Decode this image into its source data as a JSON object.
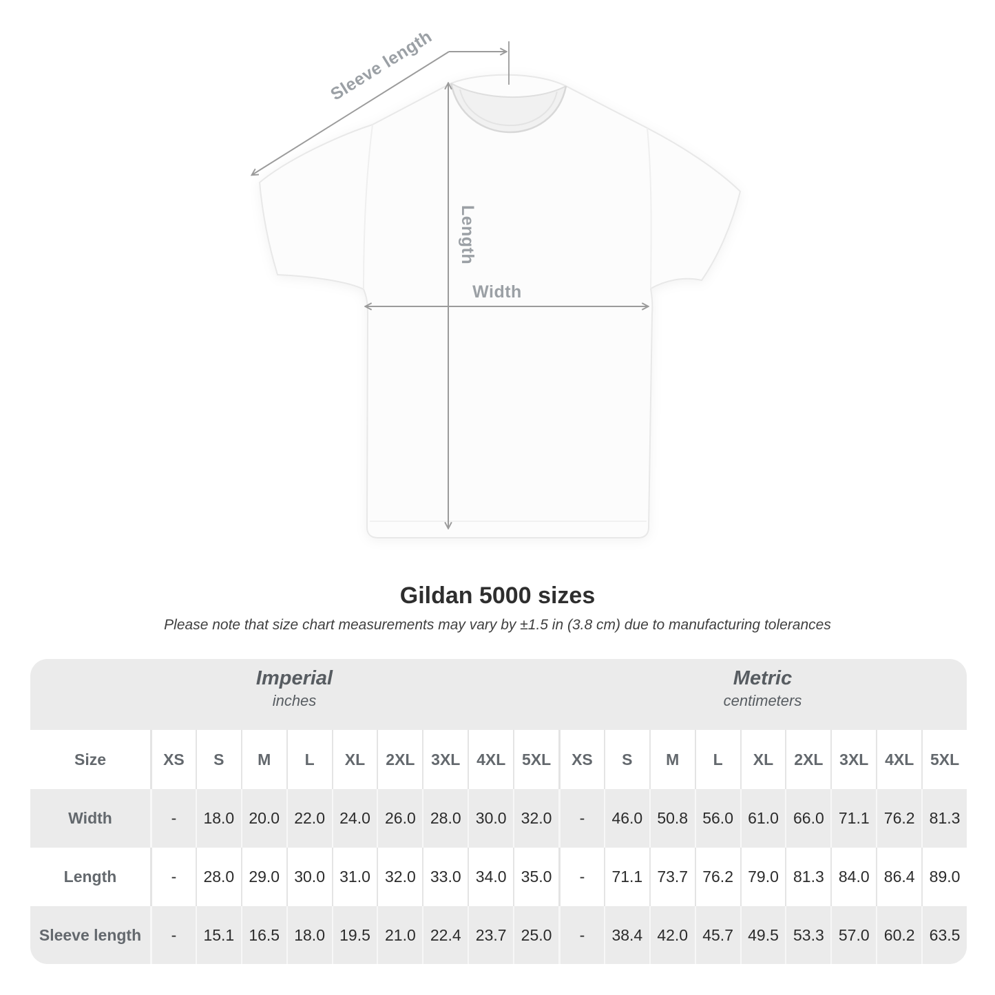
{
  "shirt_diagram": {
    "labels": {
      "sleeve": "Sleeve length",
      "length": "Length",
      "width": "Width"
    },
    "arrow_color": "#9b9b9b",
    "label_color": "#9ba0a5"
  },
  "title": "Gildan 5000 sizes",
  "subtitle": "Please note that size chart measurements may vary by ±1.5 in (3.8 cm) due to manufacturing tolerances",
  "table": {
    "size_header_label": "Size",
    "sizes": [
      "XS",
      "S",
      "M",
      "L",
      "XL",
      "2XL",
      "3XL",
      "4XL",
      "5XL"
    ],
    "unit_groups": [
      {
        "name": "Imperial",
        "unit": "inches"
      },
      {
        "name": "Metric",
        "unit": "centimeters"
      }
    ],
    "rows": [
      {
        "label": "Width",
        "imperial": [
          "-",
          "18.0",
          "20.0",
          "22.0",
          "24.0",
          "26.0",
          "28.0",
          "30.0",
          "32.0"
        ],
        "metric": [
          "-",
          "46.0",
          "50.8",
          "56.0",
          "61.0",
          "66.0",
          "71.1",
          "76.2",
          "81.3"
        ]
      },
      {
        "label": "Length",
        "imperial": [
          "-",
          "28.0",
          "29.0",
          "30.0",
          "31.0",
          "32.0",
          "33.0",
          "34.0",
          "35.0"
        ],
        "metric": [
          "-",
          "71.1",
          "73.7",
          "76.2",
          "79.0",
          "81.3",
          "84.0",
          "86.4",
          "89.0"
        ]
      },
      {
        "label": "Sleeve length",
        "imperial": [
          "-",
          "15.1",
          "16.5",
          "18.0",
          "19.5",
          "21.0",
          "22.4",
          "23.7",
          "25.0"
        ],
        "metric": [
          "-",
          "38.4",
          "42.0",
          "45.7",
          "49.5",
          "53.3",
          "57.0",
          "60.2",
          "63.5"
        ]
      }
    ]
  },
  "chart_data": {
    "type": "table",
    "title": "Gildan 5000 sizes",
    "note": "Please note that size chart measurements may vary by ±1.5 in (3.8 cm) due to manufacturing tolerances",
    "column_groups": [
      {
        "label": "Imperial",
        "unit": "inches",
        "sizes": [
          "XS",
          "S",
          "M",
          "L",
          "XL",
          "2XL",
          "3XL",
          "4XL",
          "5XL"
        ]
      },
      {
        "label": "Metric",
        "unit": "centimeters",
        "sizes": [
          "XS",
          "S",
          "M",
          "L",
          "XL",
          "2XL",
          "3XL",
          "4XL",
          "5XL"
        ]
      }
    ],
    "rows": [
      {
        "measurement": "Width",
        "imperial_inches": [
          null,
          18.0,
          20.0,
          22.0,
          24.0,
          26.0,
          28.0,
          30.0,
          32.0
        ],
        "metric_cm": [
          null,
          46.0,
          50.8,
          56.0,
          61.0,
          66.0,
          71.1,
          76.2,
          81.3
        ]
      },
      {
        "measurement": "Length",
        "imperial_inches": [
          null,
          28.0,
          29.0,
          30.0,
          31.0,
          32.0,
          33.0,
          34.0,
          35.0
        ],
        "metric_cm": [
          null,
          71.1,
          73.7,
          76.2,
          79.0,
          81.3,
          84.0,
          86.4,
          89.0
        ]
      },
      {
        "measurement": "Sleeve length",
        "imperial_inches": [
          null,
          15.1,
          16.5,
          18.0,
          19.5,
          21.0,
          22.4,
          23.7,
          25.0
        ],
        "metric_cm": [
          null,
          38.4,
          42.0,
          45.7,
          49.5,
          53.3,
          57.0,
          60.2,
          63.5
        ]
      }
    ]
  }
}
